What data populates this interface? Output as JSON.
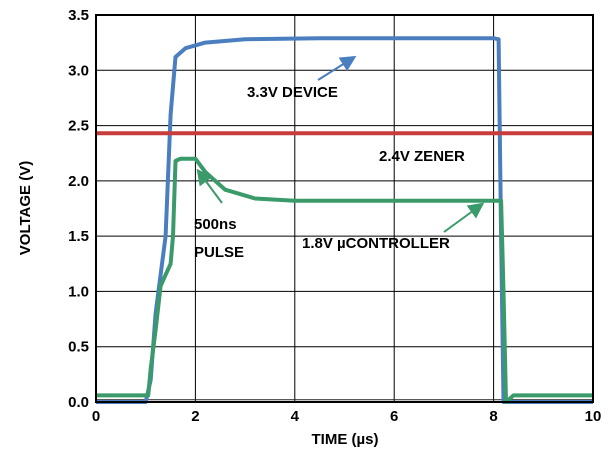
{
  "chart_data": {
    "type": "line",
    "title": "",
    "xlabel": "TIME (µs)",
    "ylabel": "VOLTAGE (V)",
    "xlim": [
      0,
      10
    ],
    "ylim": [
      0,
      3.5
    ],
    "x_ticks": [
      "0",
      "2",
      "4",
      "6",
      "8",
      "10"
    ],
    "y_ticks": [
      "0.0",
      "0.5",
      "1.0",
      "1.5",
      "2.0",
      "2.5",
      "3.0",
      "3.5"
    ],
    "grid": true,
    "series": [
      {
        "name": "3.3V DEVICE",
        "color": "#4a7ebf",
        "x": [
          0,
          1.0,
          1.1,
          1.2,
          1.4,
          1.5,
          1.6,
          1.8,
          2.2,
          3.0,
          4.5,
          6.5,
          8.0,
          8.1,
          8.15,
          8.2,
          8.3,
          9.0,
          10.0
        ],
        "y": [
          0.0,
          0.0,
          0.2,
          0.8,
          1.5,
          2.6,
          3.12,
          3.2,
          3.25,
          3.28,
          3.29,
          3.29,
          3.29,
          3.28,
          1.5,
          0.0,
          0.0,
          0.0,
          0.0
        ]
      },
      {
        "name": "2.4V ZENER",
        "color": "#c83c3c",
        "x": [
          0,
          10
        ],
        "y": [
          2.43,
          2.43
        ]
      },
      {
        "name": "1.8V µCONTROLLER",
        "color": "#3a9a6a",
        "x": [
          0,
          1.05,
          1.1,
          1.2,
          1.3,
          1.4,
          1.5,
          1.55,
          1.6,
          1.7,
          2.0,
          2.2,
          2.6,
          3.2,
          4.0,
          5.0,
          6.0,
          7.0,
          8.0,
          8.15,
          8.2,
          8.25,
          8.4,
          9.0,
          10.0
        ],
        "y": [
          0.06,
          0.06,
          0.3,
          0.65,
          1.05,
          1.15,
          1.25,
          1.5,
          2.18,
          2.2,
          2.2,
          2.08,
          1.92,
          1.84,
          1.82,
          1.82,
          1.82,
          1.82,
          1.82,
          1.82,
          1.0,
          0.0,
          0.06,
          0.06,
          0.06
        ]
      }
    ],
    "annotations": [
      {
        "text": "3.3V DEVICE"
      },
      {
        "text": "2.4V ZENER"
      },
      {
        "text": "500ns"
      },
      {
        "text": "PULSE"
      },
      {
        "text": "1.8V µCONTROLLER"
      }
    ]
  }
}
